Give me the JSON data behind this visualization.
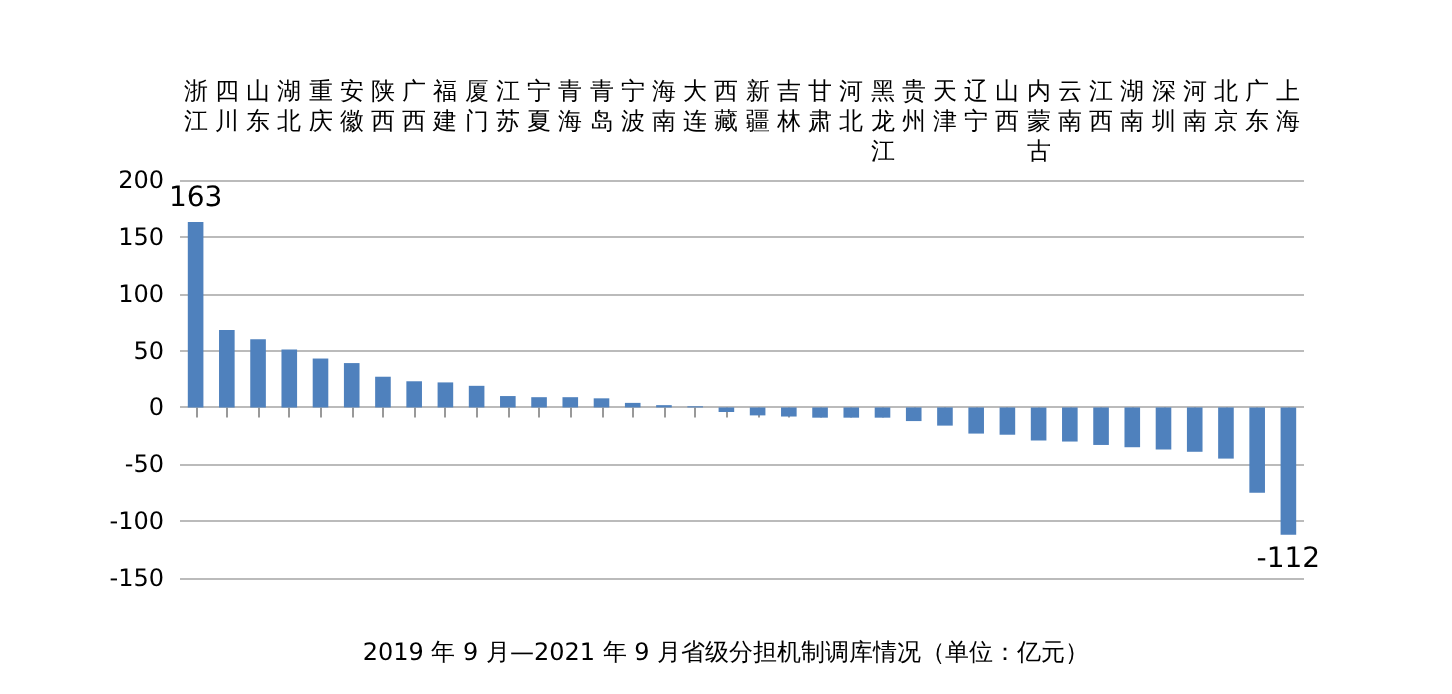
{
  "chart_data": {
    "type": "bar",
    "title": "2019 年 9 月—2021 年 9 月省级分担机制调库情况（单位：亿元）",
    "categories": [
      "浙江",
      "四川",
      "山东",
      "湖北",
      "重庆",
      "安徽",
      "陕西",
      "广西",
      "福建",
      "厦门",
      "江苏",
      "宁夏",
      "青海",
      "青岛",
      "宁波",
      "海南",
      "大连",
      "西藏",
      "新疆",
      "吉林",
      "甘肃",
      "河北",
      "黑龙江",
      "贵州",
      "天津",
      "辽宁",
      "山西",
      "内蒙古",
      "云南",
      "江西",
      "湖南",
      "深圳",
      "河南",
      "北京",
      "广东",
      "上海"
    ],
    "values": [
      163,
      68,
      60,
      51,
      43,
      39,
      27,
      23,
      22,
      19,
      10,
      9,
      9,
      8,
      4,
      2,
      1,
      -4,
      -7,
      -8,
      -9,
      -9,
      -9,
      -12,
      -16,
      -23,
      -24,
      -29,
      -30,
      -33,
      -35,
      -37,
      -39,
      -45,
      -75,
      -112
    ],
    "value_labels": [
      "163",
      null,
      null,
      null,
      null,
      null,
      null,
      null,
      null,
      null,
      null,
      null,
      null,
      null,
      null,
      null,
      null,
      null,
      null,
      null,
      null,
      null,
      null,
      null,
      null,
      null,
      null,
      null,
      null,
      null,
      null,
      null,
      null,
      null,
      null,
      "-112"
    ],
    "color": "#4f81bd",
    "ylim": [
      -150,
      200
    ],
    "yticks": [
      -150,
      -100,
      -50,
      0,
      50,
      100,
      150,
      200
    ],
    "grid": "y"
  }
}
